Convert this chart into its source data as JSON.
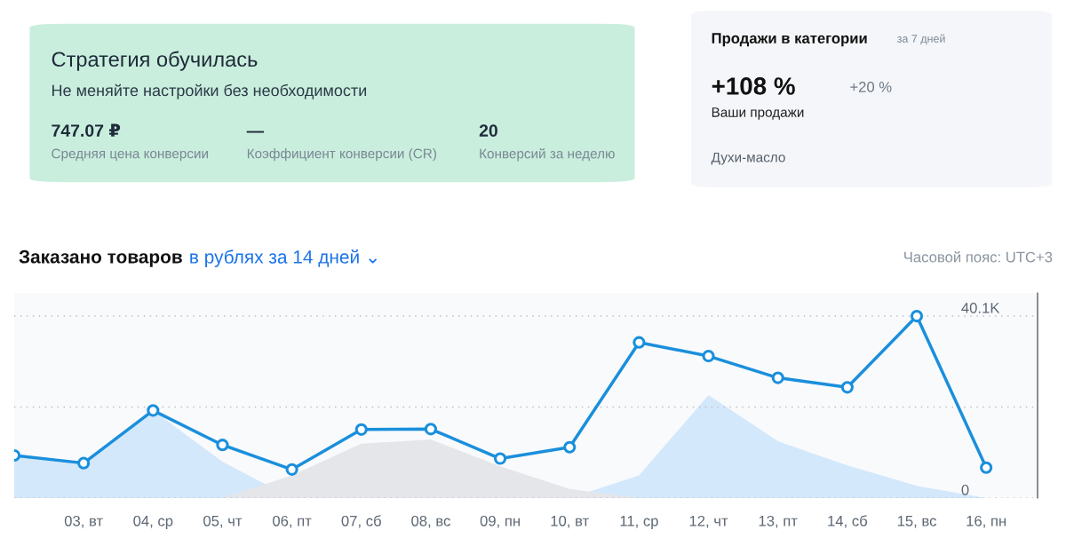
{
  "chart_data": [
    {
      "type": "other",
      "title": "Стратегия обучилась",
      "subtitle": "Не меняйте настройки без необходимости",
      "color": "#c9eedd",
      "annotations": [
        "747.07 ₽",
        "Средняя цена конверсии",
        "—",
        "Коэффициент конверсии (CR)",
        "20",
        "Конверсий за неделю"
      ]
    },
    {
      "type": "other",
      "title": "Продажи в категории",
      "subtitle": "за 7 дней",
      "color": "#f5f6f9",
      "annotations": [
        "+108 %",
        "Ваши продажи",
        "+20 %",
        "Духи-масло"
      ]
    },
    {
      "type": "line",
      "title": "Заказано товаров",
      "subtitle": "в рублях за 14 дней ⌄",
      "annotations": [
        "Часовой пояс: UTC+3"
      ],
      "categories": [
        null,
        "03, вт",
        "04, ср",
        "05, чт",
        "06, пт",
        "07, сб",
        "08, вс",
        "09, пн",
        "10, вт",
        "11, ср",
        "12, чт",
        "13, пт",
        "14, сб",
        "15, вс",
        "16, пн"
      ],
      "series": [
        {
          "type": "area",
          "color": "#d3e8fb",
          "values": [
            9400,
            7700,
            19300,
            8000,
            0,
            0,
            0,
            0,
            0,
            5000,
            22700,
            12500,
            7200,
            2700,
            0
          ]
        },
        {
          "type": "area",
          "color": "#e4e6e9",
          "values": [
            0,
            0,
            0,
            0,
            5000,
            12000,
            12900,
            7000,
            2000,
            0,
            0,
            0,
            0,
            0,
            0
          ]
        },
        {
          "color": "#1a8fdc",
          "marker": "circle",
          "values": [
            9400,
            7700,
            19300,
            11700,
            6300,
            15100,
            15200,
            8700,
            11200,
            34300,
            31300,
            26500,
            24400,
            40100,
            6700
          ]
        }
      ],
      "ylim": [
        0,
        45200
      ],
      "yticks": [
        0,
        {
          "value": 20050,
          "label": null
        },
        {
          "value": 40100,
          "label": "40.1K"
        }
      ],
      "grid": "y",
      "line_style": "solid"
    }
  ]
}
